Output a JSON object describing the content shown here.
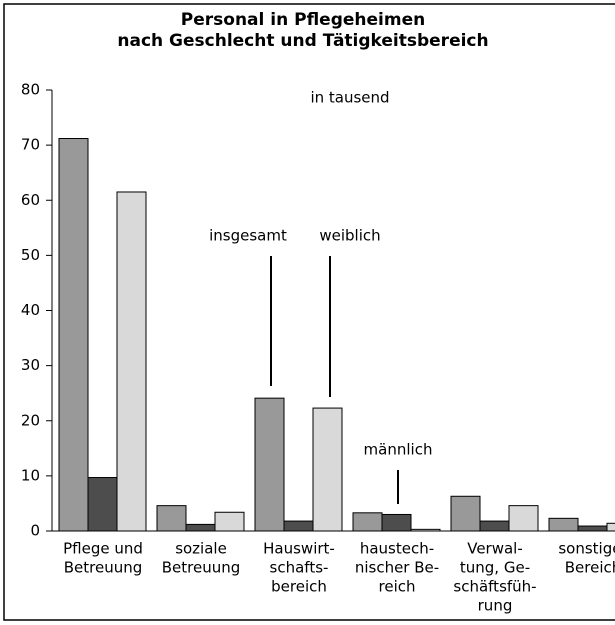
{
  "chart_data": {
    "type": "bar",
    "title": [
      "Personal in Pflegeheimen",
      "nach Geschlecht und Tätigkeitsbereich"
    ],
    "subtitle": "in tausend",
    "categories": [
      [
        "Pflege und",
        "Betreuung"
      ],
      [
        "soziale",
        "Betreuung"
      ],
      [
        "Hauswirt-",
        "schafts-",
        "bereich"
      ],
      [
        "haustech-",
        "nischer Be-",
        "reich"
      ],
      [
        "Verwal-",
        "tung, Ge-",
        "schäftsfüh-",
        "rung"
      ],
      [
        "sonstiger",
        "Bereich"
      ]
    ],
    "series": [
      {
        "name": "insgesamt",
        "color": "#999999",
        "values": [
          71.2,
          4.6,
          24.1,
          3.3,
          6.3,
          2.3
        ]
      },
      {
        "name": "männlich",
        "color": "#4d4d4d",
        "values": [
          9.7,
          1.2,
          1.8,
          3.0,
          1.8,
          0.9
        ]
      },
      {
        "name": "weiblich",
        "color": "#d9d9d9",
        "values": [
          61.5,
          3.4,
          22.3,
          0.3,
          4.6,
          1.4
        ]
      }
    ],
    "ylim": [
      0,
      80
    ],
    "yticks": [
      0,
      10,
      20,
      30,
      40,
      50,
      60,
      70,
      80
    ],
    "grid": false
  }
}
